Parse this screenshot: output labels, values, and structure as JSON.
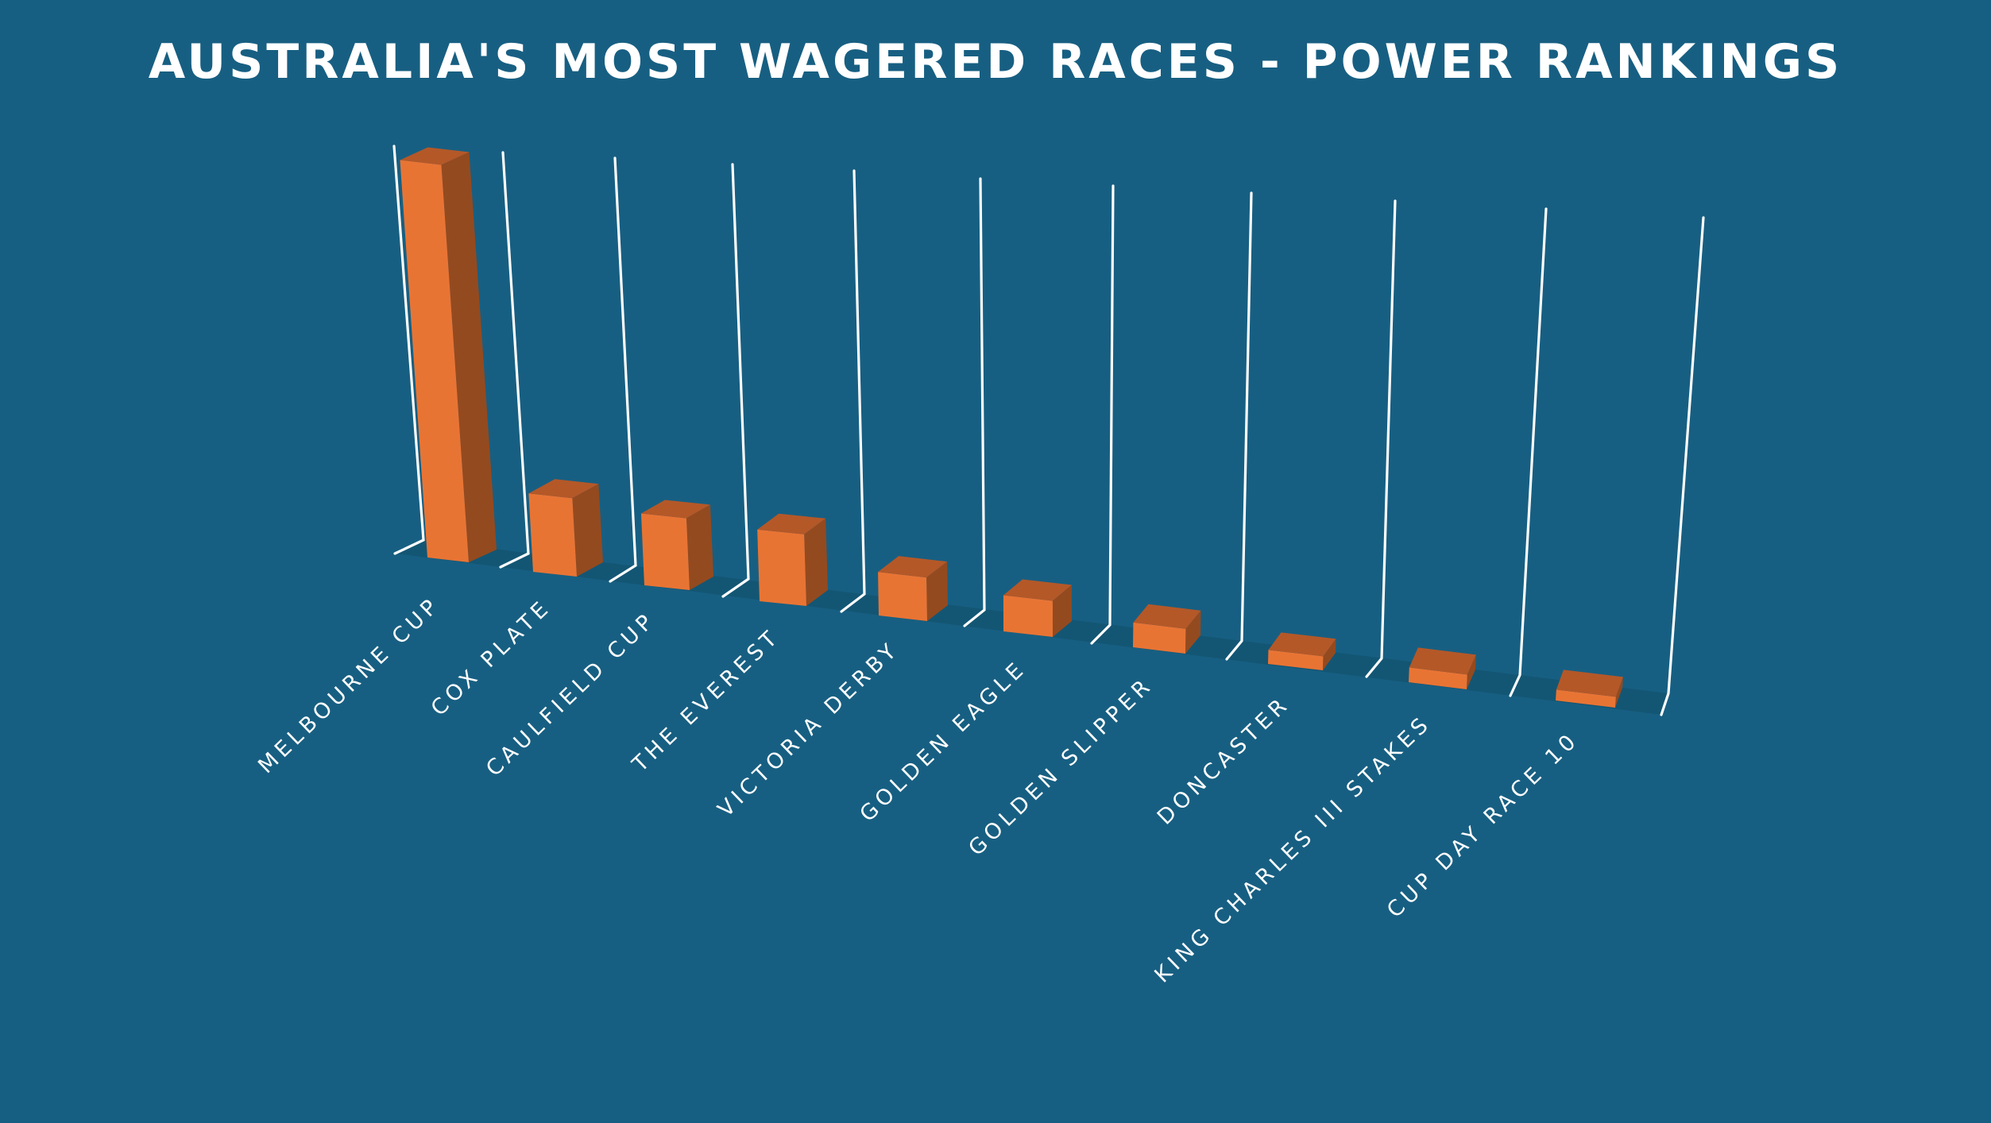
{
  "title": "AUSTRALIA'S MOST WAGERED RACES - POWER RANKINGS",
  "colors": {
    "background": "#175F82",
    "bar_front": "#E87434",
    "bar_side": "#944A1F",
    "bar_top": "#B45828",
    "floor": "#135674",
    "gridline": "#FFFFFF",
    "text": "#FFFFFF"
  },
  "chart_data": {
    "type": "bar",
    "style": "3d-perspective",
    "title": "AUSTRALIA'S MOST WAGERED RACES - POWER RANKINGS",
    "xlabel": "",
    "ylabel": "",
    "y_axis_visible": false,
    "value_unit": "relative wagering index (Melbourne Cup = 100, estimated from bar heights)",
    "ylim": [
      0,
      100
    ],
    "grid": true,
    "legend": null,
    "categories": [
      "MELBOURNE CUP",
      "COX PLATE",
      "CAULFIELD CUP",
      "THE EVEREST",
      "VICTORIA DERBY",
      "GOLDEN EAGLE",
      "GOLDEN SLIPPER",
      "DONCASTER",
      "KING CHARLES III STAKES",
      "CUP DAY RACE 10"
    ],
    "values": [
      100,
      19.4,
      17.5,
      17.1,
      10.2,
      8.3,
      5.6,
      3.1,
      3.2,
      2.3
    ]
  }
}
